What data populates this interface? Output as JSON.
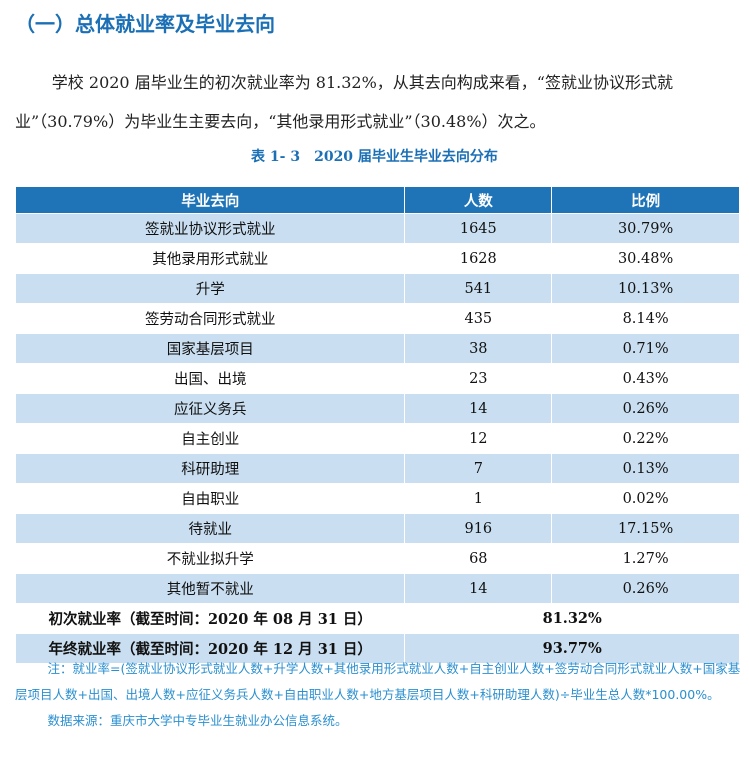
{
  "header": {
    "title": "（一）总体就业率及毕业去向"
  },
  "paragraph": "学校 2020 届毕业生的初次就业率为 81.32%，从其去向构成来看，“签就业协议形式就业”（30.79%）为毕业生主要去向，“其他录用形式就业”（30.48%）次之。",
  "table": {
    "caption": "表 1- 3　2020 届毕业生毕业去向分布",
    "columns": [
      "毕业去向",
      "人数",
      "比例"
    ],
    "rows": [
      [
        "签就业协议形式就业",
        "1645",
        "30.79%"
      ],
      [
        "其他录用形式就业",
        "1628",
        "30.48%"
      ],
      [
        "升学",
        "541",
        "10.13%"
      ],
      [
        "签劳动合同形式就业",
        "435",
        "8.14%"
      ],
      [
        "国家基层项目",
        "38",
        "0.71%"
      ],
      [
        "出国、出境",
        "23",
        "0.43%"
      ],
      [
        "应征义务兵",
        "14",
        "0.26%"
      ],
      [
        "自主创业",
        "12",
        "0.22%"
      ],
      [
        "科研助理",
        "7",
        "0.13%"
      ],
      [
        "自由职业",
        "1",
        "0.02%"
      ],
      [
        "待就业",
        "916",
        "17.15%"
      ],
      [
        "不就业拟升学",
        "68",
        "1.27%"
      ],
      [
        "其他暂不就业",
        "14",
        "0.26%"
      ]
    ],
    "summary": [
      [
        "初次就业率（截至时间：2020 年 08 月 31 日）",
        "81.32%"
      ],
      [
        "年终就业率（截至时间：2020 年 12 月 31 日）",
        "93.77%"
      ]
    ]
  },
  "notes": {
    "note": "注：就业率=(签就业协议形式就业人数+升学人数+其他录用形式就业人数+自主创业人数+签劳动合同形式就业人数+国家基层项目人数+出国、出境人数+应征义务兵人数+自由职业人数+地方基层项目人数+科研助理人数)÷毕业生总人数*100.00%。",
    "source": "数据来源：重庆市大学中专毕业生就业办公信息系统。"
  }
}
